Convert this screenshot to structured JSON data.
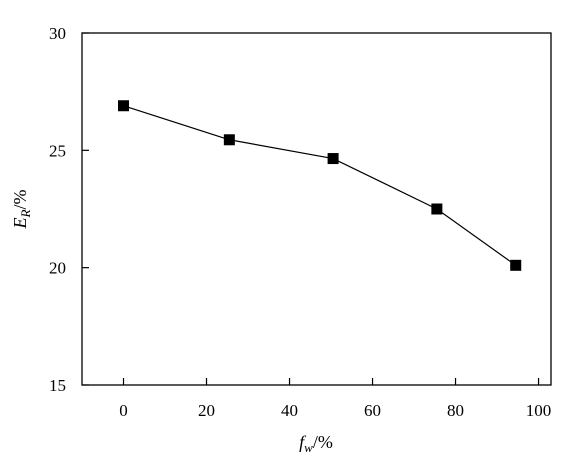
{
  "chart_data": {
    "type": "line",
    "x": [
      0,
      25.5,
      50.5,
      75.5,
      94.5
    ],
    "series": [
      {
        "values": [
          26.9,
          25.45,
          24.65,
          22.5,
          20.1
        ],
        "marker": "square",
        "color": "#000000"
      }
    ],
    "xlabel": {
      "main": "f",
      "sub": "w",
      "unit": "/%"
    },
    "ylabel": {
      "main": "E",
      "sub": "R",
      "unit": "/%"
    },
    "xlim": [
      -10,
      103
    ],
    "ylim": [
      15,
      30
    ],
    "xticks": [
      0,
      20,
      40,
      60,
      80,
      100
    ],
    "yticks": [
      15,
      20,
      25,
      30
    ],
    "xtick_labels": [
      "0",
      "20",
      "40",
      "60",
      "80",
      "100"
    ],
    "ytick_labels": [
      "15",
      "20",
      "25",
      "30"
    ],
    "grid": false,
    "legend": false
  }
}
